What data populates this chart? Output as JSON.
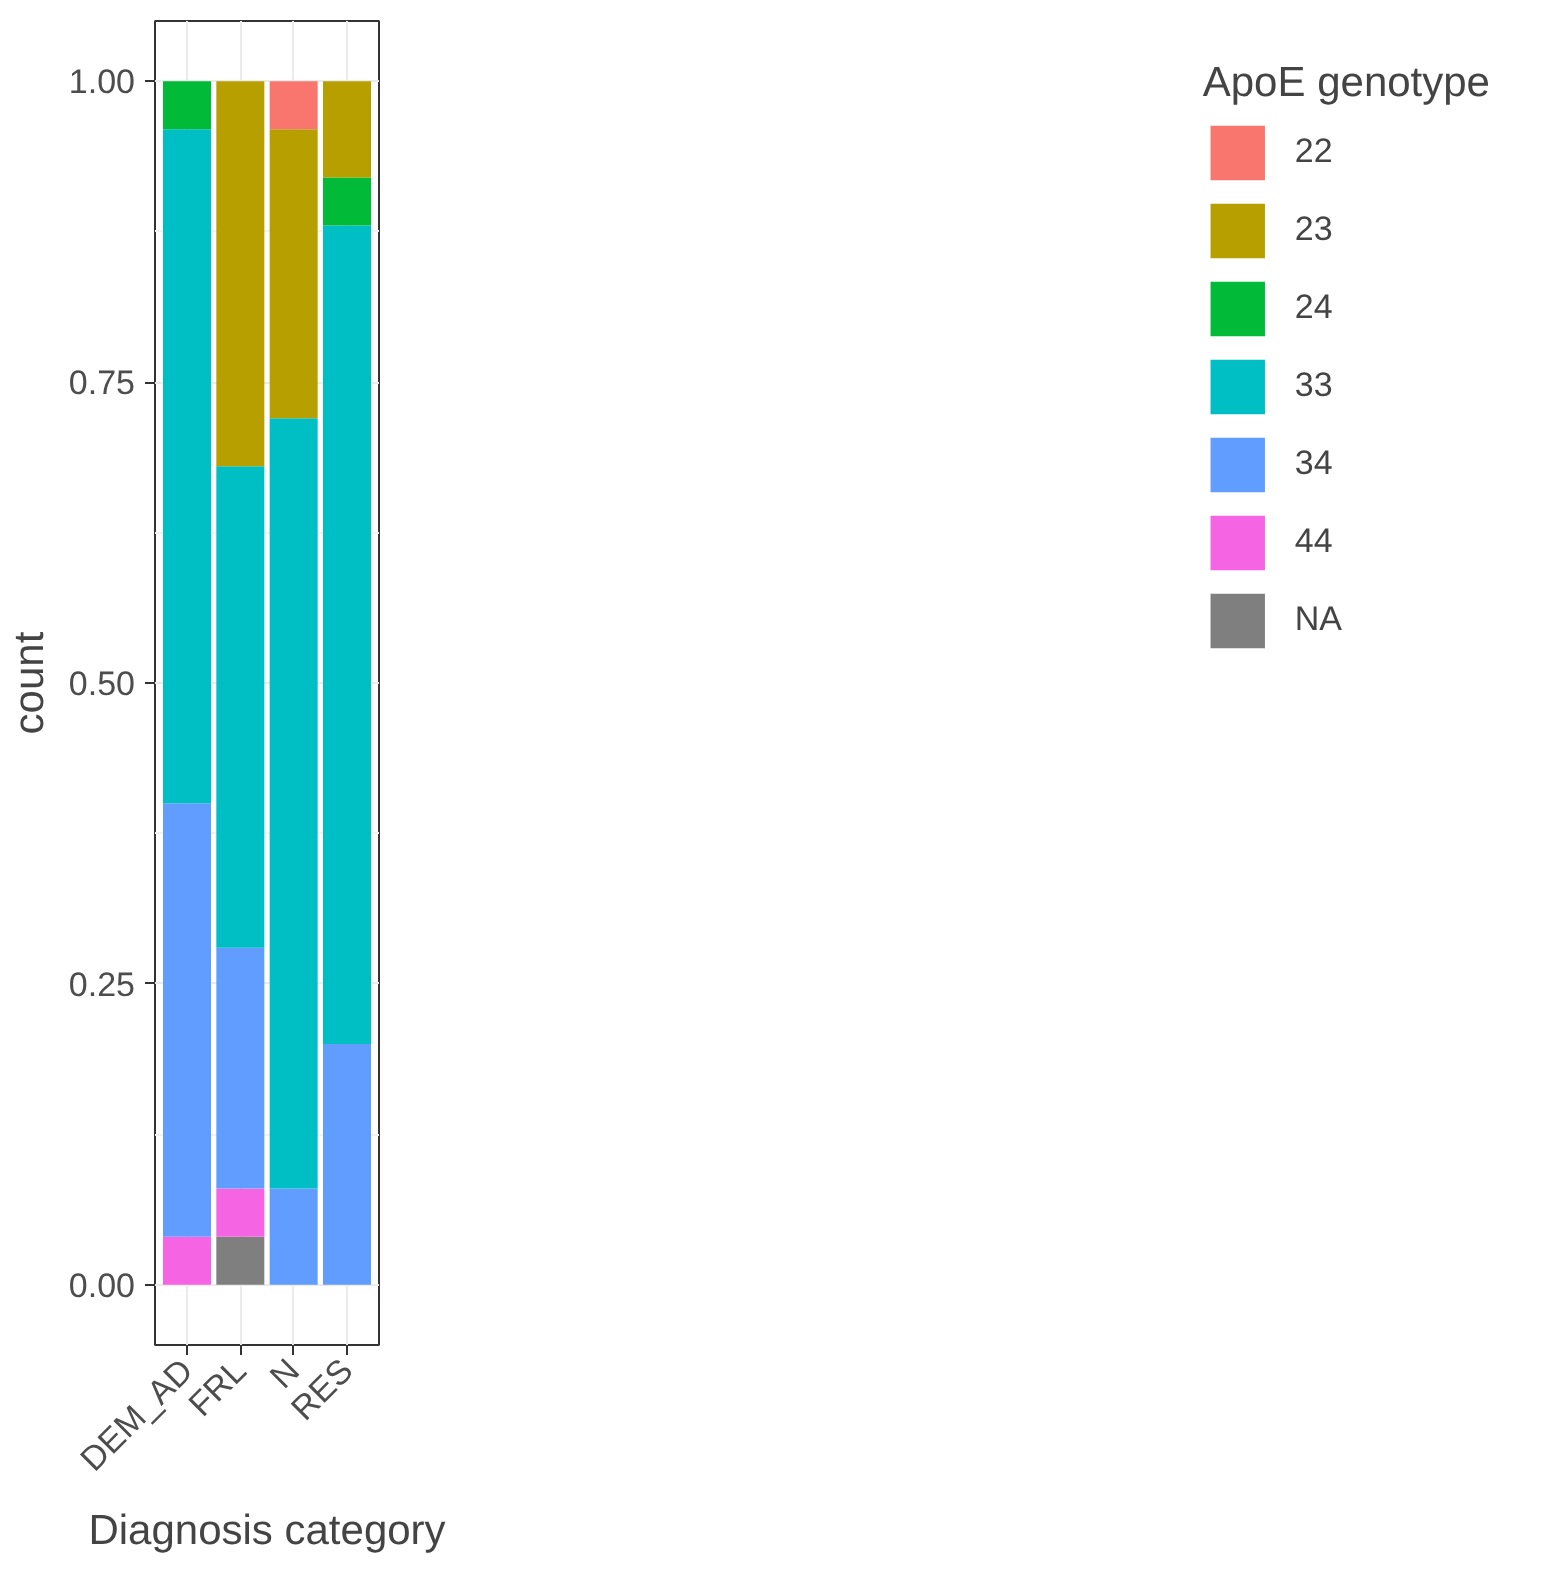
{
  "chart_data": {
    "type": "bar",
    "stacked": true,
    "xlabel": "Diagnosis category",
    "ylabel": "count",
    "legend_title": "ApoE genotype",
    "categories": [
      "DEM_AD",
      "FRL",
      "N",
      "RES"
    ],
    "series": [
      {
        "name": "NA",
        "color": "#7f7f7f",
        "values": [
          0,
          0.04,
          0,
          0
        ]
      },
      {
        "name": "44",
        "color": "#f564e3",
        "values": [
          0.04,
          0.04,
          0,
          0
        ]
      },
      {
        "name": "34",
        "color": "#619cff",
        "values": [
          0.36,
          0.2,
          0.08,
          0.2
        ]
      },
      {
        "name": "33",
        "color": "#00bfc4",
        "values": [
          0.56,
          0.4,
          0.64,
          0.68
        ]
      },
      {
        "name": "24",
        "color": "#00ba38",
        "values": [
          0.04,
          0,
          0,
          0.04
        ]
      },
      {
        "name": "23",
        "color": "#b79f00",
        "values": [
          0,
          0.32,
          0.24,
          0.08
        ]
      },
      {
        "name": "22",
        "color": "#f8766d",
        "values": [
          0,
          0,
          0.04,
          0
        ]
      }
    ],
    "ylim": [
      -0.05,
      1.05
    ],
    "yticks": [
      {
        "value": 0,
        "label": "0.00"
      },
      {
        "value": 0.25,
        "label": "0.25"
      },
      {
        "value": 0.5,
        "label": "0.50"
      },
      {
        "value": 0.75,
        "label": "0.75"
      },
      {
        "value": 1,
        "label": "1.00"
      }
    ],
    "grid": true,
    "legend": "right"
  }
}
